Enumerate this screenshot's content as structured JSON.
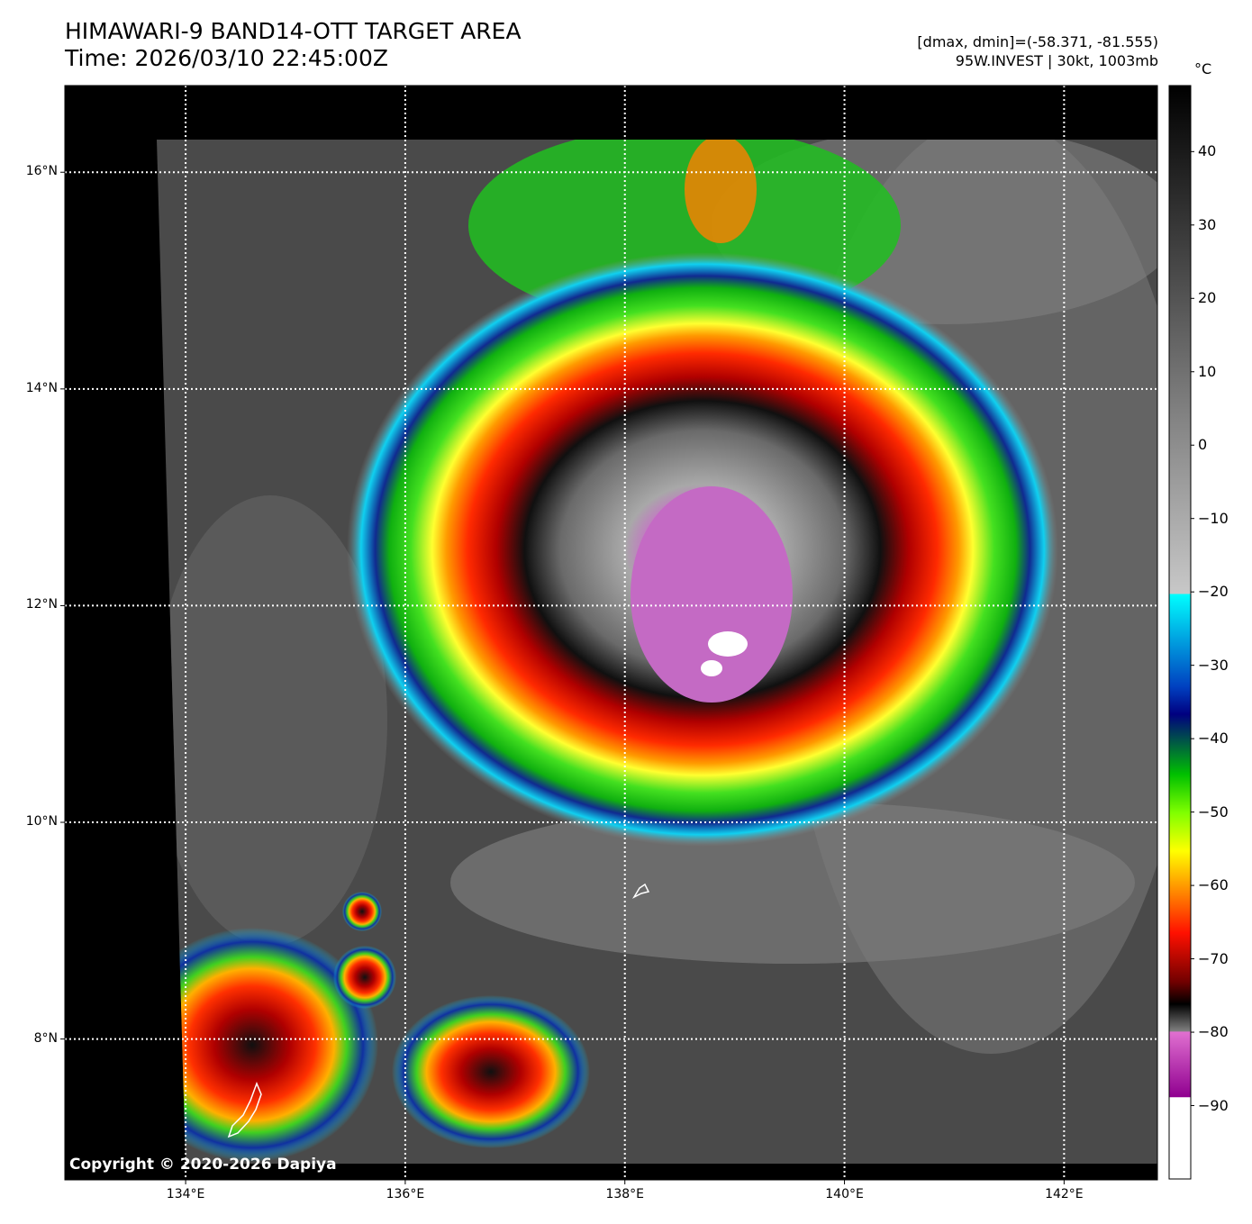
{
  "header": {
    "title_line1": "HIMAWARI-9 BAND14-OTT TARGET AREA",
    "title_line2": "Time: 2026/03/10 22:45:00Z",
    "stats_line": "[dmax, dmin]=(-58.371, -81.555)",
    "storm_line": "95W.INVEST | 30kt, 1003mb"
  },
  "colorbar": {
    "unit": "°C",
    "range": [
      -100,
      49
    ],
    "ticks": [
      "40",
      "30",
      "20",
      "10",
      "0",
      "−10",
      "−20",
      "−30",
      "−40",
      "−50",
      "−60",
      "−70",
      "−80",
      "−90"
    ],
    "tick_values": [
      40,
      30,
      20,
      10,
      0,
      -10,
      -20,
      -30,
      -40,
      -50,
      -60,
      -70,
      -80,
      -90
    ]
  },
  "map": {
    "lon_range": [
      132.9,
      142.85
    ],
    "lat_range": [
      6.7,
      16.8
    ],
    "lat_ticks": [
      "16°N",
      "14°N",
      "12°N",
      "10°N",
      "8°N"
    ],
    "lat_values": [
      16,
      14,
      12,
      10,
      8
    ],
    "lon_ticks": [
      "134°E",
      "136°E",
      "138°E",
      "140°E",
      "142°E"
    ],
    "lon_values": [
      134,
      136,
      138,
      140,
      142
    ],
    "storm_center": {
      "lon": 138.8,
      "lat": 12.2
    },
    "cloud_top_min_c": -81.555,
    "cloud_top_max_c": -58.371
  },
  "copyright": "Copyright © 2020-2026 Dapiya"
}
